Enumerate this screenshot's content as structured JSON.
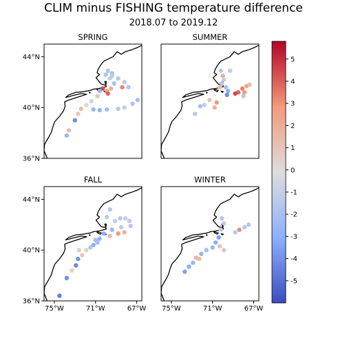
{
  "title": "CLIM minus FISHING temperature difference",
  "subtitle": "2018.07 to 2019.12",
  "panels": [
    {
      "label": "SPRING"
    },
    {
      "label": "SUMMER"
    },
    {
      "label": "FALL"
    },
    {
      "label": "WINTER"
    }
  ],
  "lat_ticks": [
    "44°N",
    "40°N",
    "36°N"
  ],
  "lon_ticks": [
    "75°W",
    "71°W",
    "67°W"
  ],
  "colorbar": {
    "colormap": "coolwarm",
    "min": -6,
    "max": 5.8,
    "ticks": [
      "5",
      "4",
      "3",
      "2",
      "1",
      "0",
      "-1",
      "-2",
      "-3",
      "-4",
      "-5"
    ],
    "low_color": "#3b4cc0",
    "mid_color": "#dddddd",
    "high_color": "#b40426"
  },
  "chart_data": {
    "type": "scatter",
    "extent": {
      "lon": [
        -76,
        -66.5
      ],
      "lat": [
        36,
        45
      ]
    },
    "panels": [
      {
        "name": "SPRING",
        "points": [
          [
            -69.8,
            42.9,
            -1.5
          ],
          [
            -69.4,
            42.7,
            -2
          ],
          [
            -68.8,
            42.3,
            -1.5
          ],
          [
            -68.2,
            42.0,
            -1.2
          ],
          [
            -69.6,
            42.3,
            -1
          ],
          [
            -69.2,
            41.9,
            -1.8
          ],
          [
            -68.4,
            41.6,
            3.5
          ],
          [
            -67.8,
            41.6,
            -1.6
          ],
          [
            -69.5,
            41.5,
            2
          ],
          [
            -69.9,
            41.3,
            3
          ],
          [
            -70.3,
            41.5,
            4.5
          ],
          [
            -70.6,
            41.3,
            -2.5
          ],
          [
            -69.8,
            41.1,
            4
          ],
          [
            -70.8,
            40.9,
            1
          ],
          [
            -71.4,
            40.5,
            -0.5
          ],
          [
            -71.9,
            40.2,
            0.5
          ],
          [
            -72.4,
            39.9,
            1.5
          ],
          [
            -71.2,
            39.85,
            -2.5
          ],
          [
            -70.6,
            39.8,
            -2.8
          ],
          [
            -69.9,
            39.85,
            -2.2
          ],
          [
            -68.8,
            39.9,
            -1.5
          ],
          [
            -68.2,
            40.0,
            -1
          ],
          [
            -67.4,
            40.3,
            -1.8
          ],
          [
            -66.9,
            40.6,
            -2
          ],
          [
            -72.7,
            39.5,
            1
          ],
          [
            -73.0,
            39.0,
            -4
          ],
          [
            -73.6,
            38.2,
            1.5
          ],
          [
            -73.8,
            37.8,
            -2.5
          ],
          [
            -69.4,
            42.5,
            -1.4
          ],
          [
            -70.0,
            42.6,
            -1.6
          ]
        ]
      },
      {
        "name": "SUMMER",
        "points": [
          [
            -70.2,
            42.9,
            -1.5
          ],
          [
            -70.0,
            42.5,
            2
          ],
          [
            -69.9,
            42.2,
            -1
          ],
          [
            -69.3,
            42.9,
            -1.3
          ],
          [
            -70.1,
            41.9,
            -1.5
          ],
          [
            -69.7,
            41.6,
            -2
          ],
          [
            -69.5,
            41.3,
            -3
          ],
          [
            -69.6,
            41.0,
            -4
          ],
          [
            -70.3,
            41.6,
            1.5
          ],
          [
            -70.6,
            40.4,
            3
          ],
          [
            -70.8,
            40.0,
            2
          ],
          [
            -71.3,
            40.6,
            1
          ],
          [
            -71.8,
            40.2,
            -1
          ],
          [
            -72.2,
            40.1,
            -2
          ],
          [
            -72.7,
            39.5,
            -1.5
          ],
          [
            -68.5,
            41.2,
            4
          ],
          [
            -68.1,
            41.5,
            3.5
          ],
          [
            -67.7,
            41.7,
            2.5
          ],
          [
            -67.4,
            41.8,
            1.5
          ],
          [
            -68.0,
            40.9,
            -1.5
          ],
          [
            -68.8,
            41.1,
            4.5
          ],
          [
            -67.9,
            41.2,
            3
          ]
        ]
      },
      {
        "name": "FALL",
        "points": [
          [
            -69.6,
            43.2,
            -1.5
          ],
          [
            -69.9,
            42.6,
            -1.3
          ],
          [
            -69.1,
            42.3,
            -1
          ],
          [
            -68.6,
            42.5,
            -1.5
          ],
          [
            -68.1,
            42.5,
            -1
          ],
          [
            -67.7,
            42.3,
            -1.2
          ],
          [
            -67.6,
            41.9,
            -1.5
          ],
          [
            -68.5,
            41.8,
            -1.2
          ],
          [
            -69.4,
            41.6,
            -2.5
          ],
          [
            -70.2,
            41.3,
            -3
          ],
          [
            -68.8,
            41.3,
            3
          ],
          [
            -68.2,
            41.4,
            2
          ],
          [
            -69.6,
            41.1,
            1.5
          ],
          [
            -70.6,
            40.9,
            -2.8
          ],
          [
            -71.2,
            40.4,
            -3
          ],
          [
            -70.8,
            40.6,
            -2
          ],
          [
            -71.9,
            40.0,
            0.5
          ],
          [
            -72.3,
            39.6,
            1
          ],
          [
            -72.7,
            39.3,
            -3.8
          ],
          [
            -72.9,
            38.8,
            -4.2
          ],
          [
            -73.3,
            38.4,
            0.5
          ],
          [
            -73.8,
            37.8,
            -4
          ],
          [
            -74.5,
            36.4,
            -4.5
          ],
          [
            -71.5,
            40.2,
            -1.5
          ],
          [
            -72.6,
            40.0,
            0.8
          ],
          [
            -71.0,
            40.8,
            -2.2
          ]
        ]
      },
      {
        "name": "WINTER",
        "points": [
          [
            -70.1,
            42.5,
            -1.5
          ],
          [
            -69.9,
            42.1,
            -1.2
          ],
          [
            -70.2,
            41.6,
            -1
          ],
          [
            -70.4,
            41.0,
            -3.5
          ],
          [
            -70.7,
            40.6,
            -3
          ],
          [
            -71.0,
            40.2,
            -2.5
          ],
          [
            -70.3,
            40.3,
            1.2
          ],
          [
            -69.9,
            40.0,
            -1
          ],
          [
            -71.6,
            40.0,
            -2
          ],
          [
            -72.1,
            39.7,
            -2.5
          ],
          [
            -72.6,
            39.4,
            2
          ],
          [
            -72.9,
            39.0,
            -2.5
          ],
          [
            -73.3,
            38.7,
            -3
          ],
          [
            -73.7,
            38.3,
            -3.5
          ],
          [
            -68.4,
            41.6,
            3.2
          ],
          [
            -67.9,
            41.8,
            -1.5
          ],
          [
            -67.5,
            42.0,
            -1.5
          ],
          [
            -68.8,
            41.4,
            -1.5
          ],
          [
            -72.3,
            39.3,
            1.5
          ]
        ]
      }
    ]
  }
}
